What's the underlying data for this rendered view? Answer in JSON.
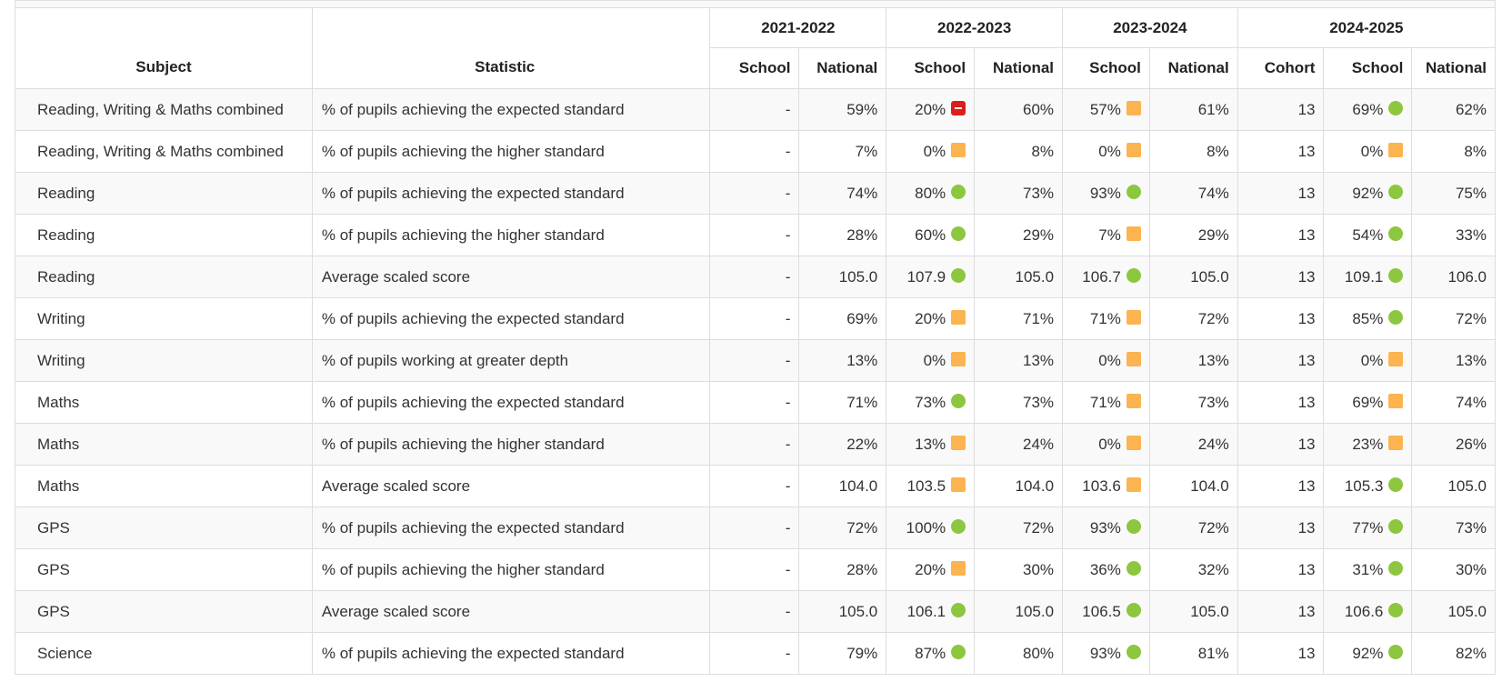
{
  "table": {
    "headers": {
      "subject": "Subject",
      "statistic": "Statistic",
      "years": [
        "2021-2022",
        "2022-2023",
        "2023-2024",
        "2024-2025"
      ],
      "school": "School",
      "national": "National",
      "cohort": "Cohort"
    },
    "status_colors": {
      "green": "#8dc63f",
      "amber": "#fbb450",
      "red": "#dd1c1c"
    },
    "rows": [
      {
        "subject": "Reading, Writing & Maths combined",
        "statistic": "% of pupils achieving the expected standard",
        "y2122_school": "-",
        "y2122_national": "59%",
        "y2223_school": "20%",
        "y2223_status": "red",
        "y2223_national": "60%",
        "y2324_school": "57%",
        "y2324_status": "amber",
        "y2324_national": "61%",
        "y2425_cohort": "13",
        "y2425_school": "69%",
        "y2425_status": "green",
        "y2425_national": "62%"
      },
      {
        "subject": "Reading, Writing & Maths combined",
        "statistic": "% of pupils achieving the higher standard",
        "y2122_school": "-",
        "y2122_national": "7%",
        "y2223_school": "0%",
        "y2223_status": "amber",
        "y2223_national": "8%",
        "y2324_school": "0%",
        "y2324_status": "amber",
        "y2324_national": "8%",
        "y2425_cohort": "13",
        "y2425_school": "0%",
        "y2425_status": "amber",
        "y2425_national": "8%"
      },
      {
        "subject": "Reading",
        "statistic": "% of pupils achieving the expected standard",
        "y2122_school": "-",
        "y2122_national": "74%",
        "y2223_school": "80%",
        "y2223_status": "green",
        "y2223_national": "73%",
        "y2324_school": "93%",
        "y2324_status": "green",
        "y2324_national": "74%",
        "y2425_cohort": "13",
        "y2425_school": "92%",
        "y2425_status": "green",
        "y2425_national": "75%"
      },
      {
        "subject": "Reading",
        "statistic": "% of pupils achieving the higher standard",
        "y2122_school": "-",
        "y2122_national": "28%",
        "y2223_school": "60%",
        "y2223_status": "green",
        "y2223_national": "29%",
        "y2324_school": "7%",
        "y2324_status": "amber",
        "y2324_national": "29%",
        "y2425_cohort": "13",
        "y2425_school": "54%",
        "y2425_status": "green",
        "y2425_national": "33%"
      },
      {
        "subject": "Reading",
        "statistic": "Average scaled score",
        "y2122_school": "-",
        "y2122_national": "105.0",
        "y2223_school": "107.9",
        "y2223_status": "green",
        "y2223_national": "105.0",
        "y2324_school": "106.7",
        "y2324_status": "green",
        "y2324_national": "105.0",
        "y2425_cohort": "13",
        "y2425_school": "109.1",
        "y2425_status": "green",
        "y2425_national": "106.0"
      },
      {
        "subject": "Writing",
        "statistic": "% of pupils achieving the expected standard",
        "y2122_school": "-",
        "y2122_national": "69%",
        "y2223_school": "20%",
        "y2223_status": "amber",
        "y2223_national": "71%",
        "y2324_school": "71%",
        "y2324_status": "amber",
        "y2324_national": "72%",
        "y2425_cohort": "13",
        "y2425_school": "85%",
        "y2425_status": "green",
        "y2425_national": "72%"
      },
      {
        "subject": "Writing",
        "statistic": "% of pupils working at greater depth",
        "y2122_school": "-",
        "y2122_national": "13%",
        "y2223_school": "0%",
        "y2223_status": "amber",
        "y2223_national": "13%",
        "y2324_school": "0%",
        "y2324_status": "amber",
        "y2324_national": "13%",
        "y2425_cohort": "13",
        "y2425_school": "0%",
        "y2425_status": "amber",
        "y2425_national": "13%"
      },
      {
        "subject": "Maths",
        "statistic": "% of pupils achieving the expected standard",
        "y2122_school": "-",
        "y2122_national": "71%",
        "y2223_school": "73%",
        "y2223_status": "green",
        "y2223_national": "73%",
        "y2324_school": "71%",
        "y2324_status": "amber",
        "y2324_national": "73%",
        "y2425_cohort": "13",
        "y2425_school": "69%",
        "y2425_status": "amber",
        "y2425_national": "74%"
      },
      {
        "subject": "Maths",
        "statistic": "% of pupils achieving the higher standard",
        "y2122_school": "-",
        "y2122_national": "22%",
        "y2223_school": "13%",
        "y2223_status": "amber",
        "y2223_national": "24%",
        "y2324_school": "0%",
        "y2324_status": "amber",
        "y2324_national": "24%",
        "y2425_cohort": "13",
        "y2425_school": "23%",
        "y2425_status": "amber",
        "y2425_national": "26%"
      },
      {
        "subject": "Maths",
        "statistic": "Average scaled score",
        "y2122_school": "-",
        "y2122_national": "104.0",
        "y2223_school": "103.5",
        "y2223_status": "amber",
        "y2223_national": "104.0",
        "y2324_school": "103.6",
        "y2324_status": "amber",
        "y2324_national": "104.0",
        "y2425_cohort": "13",
        "y2425_school": "105.3",
        "y2425_status": "green",
        "y2425_national": "105.0"
      },
      {
        "subject": "GPS",
        "statistic": "% of pupils achieving the expected standard",
        "y2122_school": "-",
        "y2122_national": "72%",
        "y2223_school": "100%",
        "y2223_status": "green",
        "y2223_national": "72%",
        "y2324_school": "93%",
        "y2324_status": "green",
        "y2324_national": "72%",
        "y2425_cohort": "13",
        "y2425_school": "77%",
        "y2425_status": "green",
        "y2425_national": "73%"
      },
      {
        "subject": "GPS",
        "statistic": "% of pupils achieving the higher standard",
        "y2122_school": "-",
        "y2122_national": "28%",
        "y2223_school": "20%",
        "y2223_status": "amber",
        "y2223_national": "30%",
        "y2324_school": "36%",
        "y2324_status": "green",
        "y2324_national": "32%",
        "y2425_cohort": "13",
        "y2425_school": "31%",
        "y2425_status": "green",
        "y2425_national": "30%"
      },
      {
        "subject": "GPS",
        "statistic": "Average scaled score",
        "y2122_school": "-",
        "y2122_national": "105.0",
        "y2223_school": "106.1",
        "y2223_status": "green",
        "y2223_national": "105.0",
        "y2324_school": "106.5",
        "y2324_status": "green",
        "y2324_national": "105.0",
        "y2425_cohort": "13",
        "y2425_school": "106.6",
        "y2425_status": "green",
        "y2425_national": "105.0"
      },
      {
        "subject": "Science",
        "statistic": "% of pupils achieving the expected standard",
        "y2122_school": "-",
        "y2122_national": "79%",
        "y2223_school": "87%",
        "y2223_status": "green",
        "y2223_national": "80%",
        "y2324_school": "93%",
        "y2324_status": "green",
        "y2324_national": "81%",
        "y2425_cohort": "13",
        "y2425_school": "92%",
        "y2425_status": "green",
        "y2425_national": "82%"
      }
    ]
  }
}
